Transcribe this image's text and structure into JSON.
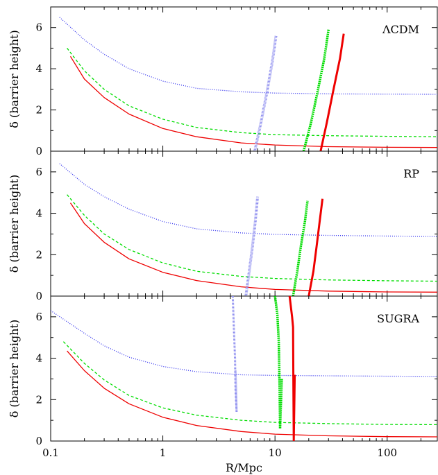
{
  "chart_data": {
    "type": "line",
    "xlabel": "R/Mpc",
    "xscale": "log",
    "xlim": [
      0.1,
      280
    ],
    "x_ticks": [
      {
        "value": 0.1,
        "label": "0.1"
      },
      {
        "value": 1,
        "label": "1"
      },
      {
        "value": 10,
        "label": "10"
      },
      {
        "value": 100,
        "label": "100"
      }
    ],
    "colors": {
      "blue": "#3333ee",
      "green": "#00dd00",
      "red": "#ee0000",
      "blue_band": "#8888ee"
    },
    "panels": [
      {
        "label": "ΛCDM",
        "ylabel": "δ (barrier height)",
        "ylim": [
          0,
          7
        ],
        "y_ticks": [
          0,
          2,
          4,
          6
        ],
        "barriers": [
          {
            "color": "blue",
            "dash": "1,2",
            "x": [
              0.12,
              0.2,
              0.3,
              0.5,
              1,
              2,
              5,
              10,
              30,
              100,
              280
            ],
            "y": [
              6.5,
              5.4,
              4.7,
              4.0,
              3.4,
              3.05,
              2.88,
              2.82,
              2.78,
              2.77,
              2.76
            ]
          },
          {
            "color": "green",
            "dash": "4,3",
            "x": [
              0.14,
              0.2,
              0.3,
              0.5,
              1,
              2,
              5,
              10,
              30,
              100,
              280
            ],
            "y": [
              5.0,
              3.9,
              3.0,
              2.2,
              1.55,
              1.15,
              0.9,
              0.8,
              0.75,
              0.72,
              0.7
            ]
          },
          {
            "color": "red",
            "dash": "",
            "x": [
              0.15,
              0.2,
              0.3,
              0.5,
              1,
              2,
              5,
              10,
              30,
              100,
              280
            ],
            "y": [
              4.6,
              3.5,
              2.6,
              1.8,
              1.1,
              0.7,
              0.4,
              0.3,
              0.22,
              0.19,
              0.18
            ]
          }
        ],
        "tracks": [
          {
            "color": "blue_band",
            "width": 4,
            "dash": "1,1",
            "x": [
              6.6,
              7.5,
              8.5,
              9.5,
              10.2
            ],
            "y": [
              0,
              1.4,
              2.9,
              4.4,
              5.6
            ]
          },
          {
            "color": "green",
            "width": 3.5,
            "dash": "2,1",
            "x": [
              18.0,
              21.0,
              24.0,
              27.5,
              30.0
            ],
            "y": [
              0,
              1.4,
              2.9,
              4.5,
              5.9
            ]
          },
          {
            "color": "red",
            "width": 3,
            "dash": "",
            "x": [
              25.5,
              29.0,
              33.0,
              38.0,
              41.0
            ],
            "y": [
              0,
              1.4,
              2.9,
              4.5,
              5.7
            ]
          }
        ]
      },
      {
        "label": "RP",
        "ylabel": "δ (barrier height)",
        "ylim": [
          0,
          7
        ],
        "y_ticks": [
          0,
          2,
          4,
          6
        ],
        "barriers": [
          {
            "color": "blue",
            "dash": "1,2",
            "x": [
              0.12,
              0.2,
              0.3,
              0.5,
              1,
              2,
              5,
              10,
              30,
              100,
              280
            ],
            "y": [
              6.4,
              5.4,
              4.8,
              4.2,
              3.6,
              3.25,
              3.05,
              2.98,
              2.93,
              2.9,
              2.88
            ]
          },
          {
            "color": "green",
            "dash": "4,3",
            "x": [
              0.14,
              0.2,
              0.3,
              0.5,
              1,
              2,
              5,
              10,
              30,
              100,
              280
            ],
            "y": [
              4.9,
              3.9,
              3.0,
              2.25,
              1.6,
              1.2,
              0.95,
              0.85,
              0.78,
              0.74,
              0.72
            ]
          },
          {
            "color": "red",
            "dash": "",
            "x": [
              0.15,
              0.2,
              0.3,
              0.5,
              1,
              2,
              5,
              10,
              30,
              100,
              280
            ],
            "y": [
              4.5,
              3.5,
              2.6,
              1.8,
              1.15,
              0.75,
              0.45,
              0.32,
              0.24,
              0.2,
              0.19
            ]
          }
        ],
        "tracks": [
          {
            "color": "blue_band",
            "width": 4,
            "dash": "1,1",
            "x": [
              5.5,
              5.9,
              6.3,
              6.7,
              7.0
            ],
            "y": [
              0,
              1.2,
              2.4,
              3.7,
              4.8
            ]
          },
          {
            "color": "green",
            "width": 3.5,
            "dash": "2,1",
            "x": [
              14.5,
              15.8,
              17.0,
              18.5,
              19.5
            ],
            "y": [
              0,
              1.2,
              2.4,
              3.6,
              4.6
            ]
          },
          {
            "color": "red",
            "width": 3,
            "dash": "",
            "x": [
              20.0,
              22.0,
              23.5,
              25.0,
              26.5
            ],
            "y": [
              0,
              1.2,
              2.4,
              3.6,
              4.7
            ]
          }
        ]
      },
      {
        "label": "SUGRA",
        "ylabel": "δ (barrier height)",
        "ylim": [
          0,
          7
        ],
        "y_ticks": [
          0,
          2,
          4,
          6
        ],
        "barriers": [
          {
            "color": "blue",
            "dash": "1,2",
            "x": [
              0.1,
              0.2,
              0.3,
              0.5,
              1,
              2,
              5,
              10,
              30,
              100,
              280
            ],
            "y": [
              6.3,
              5.2,
              4.6,
              4.05,
              3.6,
              3.35,
              3.2,
              3.17,
              3.15,
              3.13,
              3.12
            ]
          },
          {
            "color": "green",
            "dash": "4,3",
            "x": [
              0.13,
              0.2,
              0.3,
              0.5,
              1,
              2,
              5,
              10,
              30,
              100,
              280
            ],
            "y": [
              4.8,
              3.75,
              2.95,
              2.2,
              1.6,
              1.25,
              1.0,
              0.9,
              0.84,
              0.8,
              0.79
            ]
          },
          {
            "color": "red",
            "dash": "",
            "x": [
              0.14,
              0.2,
              0.3,
              0.5,
              1,
              2,
              5,
              10,
              30,
              100,
              280
            ],
            "y": [
              4.35,
              3.4,
              2.55,
              1.8,
              1.15,
              0.75,
              0.46,
              0.33,
              0.25,
              0.21,
              0.2
            ]
          }
        ],
        "tracks": [
          {
            "color": "blue_band",
            "width": 3,
            "dash": "1,1",
            "x": [
              4.2,
              4.3,
              4.4,
              4.45,
              4.55,
              4.5,
              4.45
            ],
            "y": [
              7.0,
              5.5,
              4.0,
              2.5,
              1.4,
              2.6,
              3.4
            ]
          },
          {
            "color": "green",
            "width": 3.5,
            "dash": "2,1",
            "x": [
              10.0,
              10.5,
              10.8,
              11.0,
              11.1,
              11.3,
              11.5
            ],
            "y": [
              7.0,
              6.1,
              4.8,
              2.4,
              0.6,
              1.8,
              3.0
            ]
          },
          {
            "color": "red",
            "width": 3,
            "dash": "",
            "x": [
              13.5,
              14.2,
              14.5,
              14.6,
              14.7,
              14.9,
              15.0
            ],
            "y": [
              7.0,
              6.0,
              5.5,
              2.5,
              0.0,
              2.0,
              3.2
            ]
          }
        ]
      }
    ]
  }
}
